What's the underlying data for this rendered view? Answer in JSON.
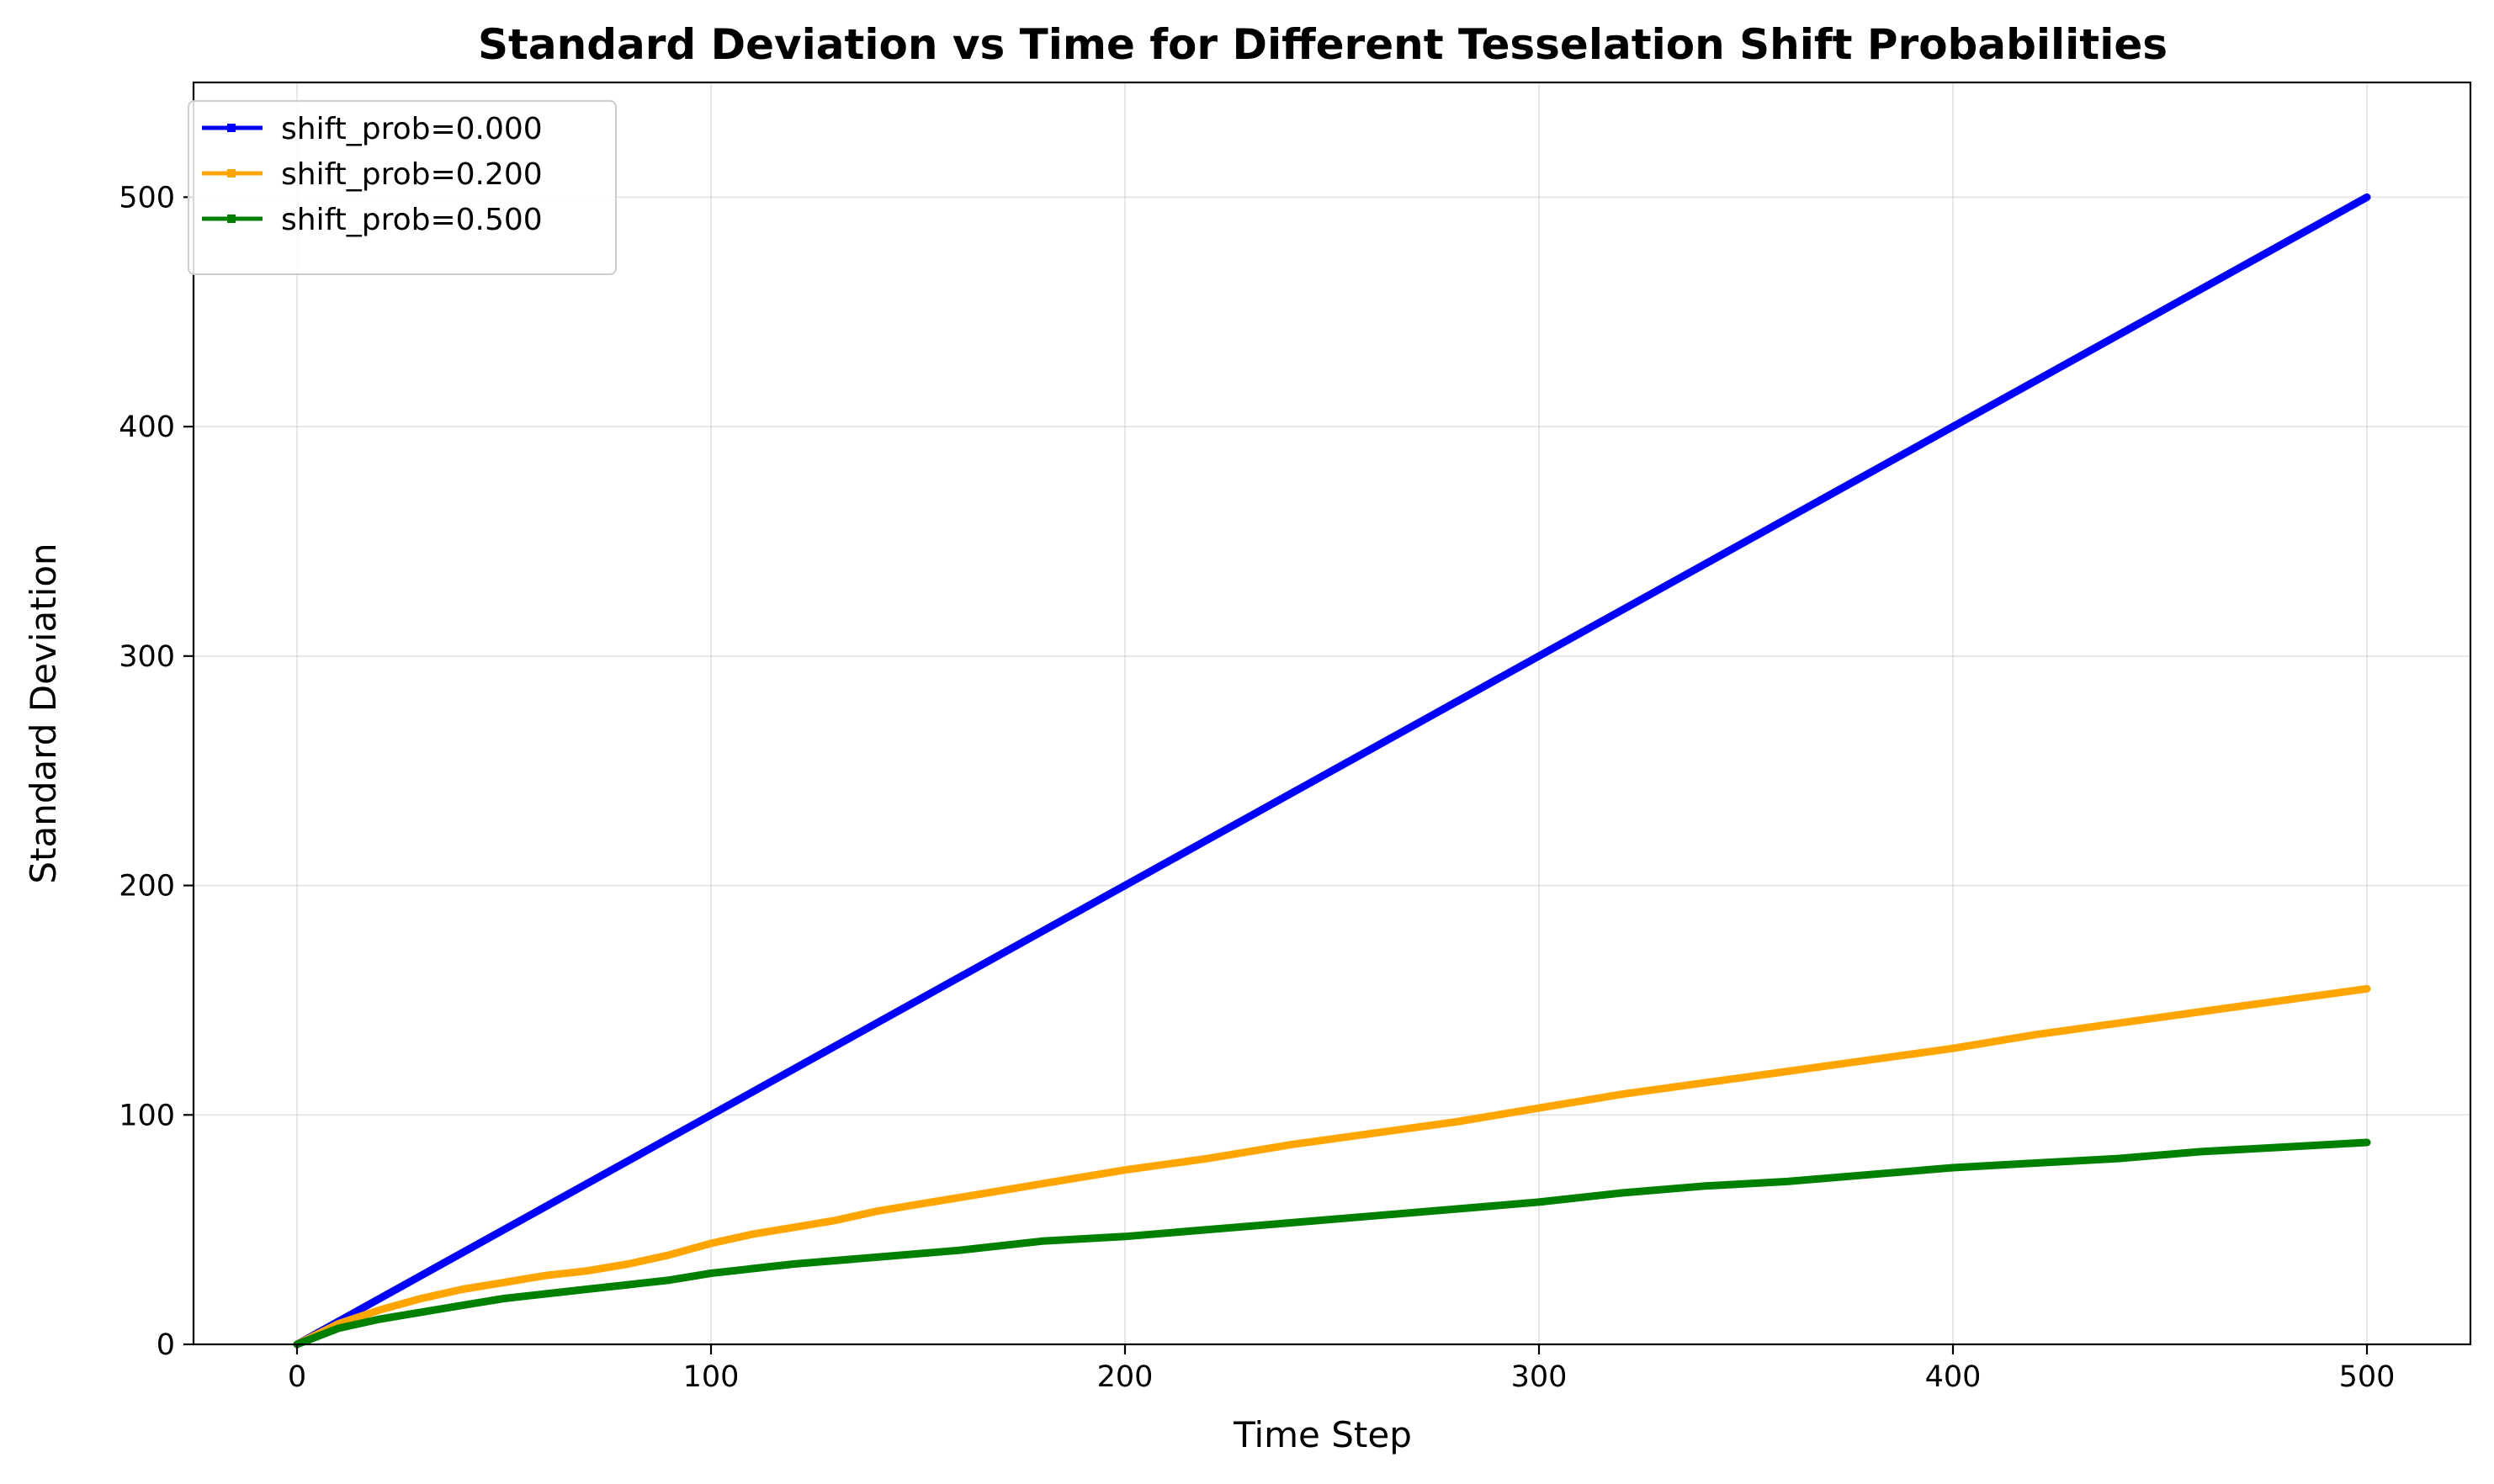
{
  "chart_data": {
    "type": "line",
    "title": "Standard Deviation vs Time for Different Tesselation Shift Probabilities",
    "xlabel": "Time Step",
    "ylabel": "Standard Deviation",
    "xlim": [
      -25,
      525
    ],
    "ylim": [
      0,
      550
    ],
    "xticks": [
      0,
      100,
      200,
      300,
      400,
      500
    ],
    "yticks": [
      0,
      100,
      200,
      300,
      400,
      500
    ],
    "grid": true,
    "legend_position": "upper-left",
    "series": [
      {
        "name": "shift_prob=0.000",
        "color": "#0000ff",
        "x": [
          0,
          500
        ],
        "y": [
          0,
          500
        ]
      },
      {
        "name": "shift_prob=0.200",
        "color": "#ffa500",
        "x": [
          0,
          10,
          20,
          30,
          40,
          50,
          60,
          70,
          80,
          90,
          100,
          110,
          120,
          130,
          140,
          150,
          160,
          170,
          180,
          190,
          200,
          220,
          240,
          260,
          280,
          300,
          320,
          340,
          360,
          380,
          400,
          420,
          440,
          460,
          480,
          500
        ],
        "y": [
          0,
          9,
          15,
          20,
          24,
          27,
          30,
          32,
          35,
          39,
          44,
          48,
          51,
          54,
          58,
          61,
          64,
          67,
          70,
          73,
          76,
          81,
          87,
          92,
          97,
          103,
          109,
          114,
          119,
          124,
          129,
          135,
          140,
          145,
          150,
          155
        ]
      },
      {
        "name": "shift_prob=0.500",
        "color": "#008000",
        "x": [
          0,
          10,
          20,
          30,
          40,
          50,
          60,
          70,
          80,
          90,
          100,
          120,
          140,
          160,
          180,
          200,
          220,
          240,
          260,
          280,
          300,
          320,
          340,
          360,
          380,
          400,
          420,
          440,
          460,
          480,
          500
        ],
        "y": [
          0,
          7,
          11,
          14,
          17,
          20,
          22,
          24,
          26,
          28,
          31,
          35,
          38,
          41,
          45,
          47,
          50,
          53,
          56,
          59,
          62,
          66,
          69,
          71,
          74,
          77,
          79,
          81,
          84,
          86,
          88
        ]
      }
    ]
  }
}
